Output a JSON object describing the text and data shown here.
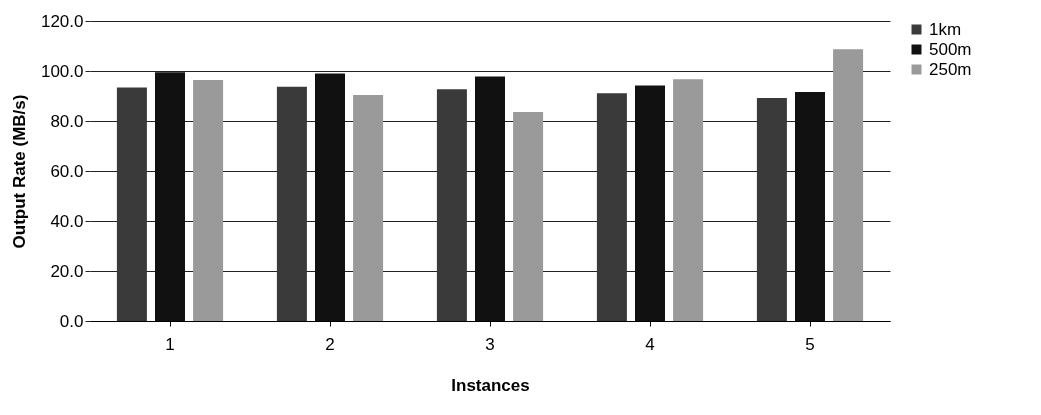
{
  "chart_data": {
    "type": "bar",
    "xlabel": "Instances",
    "ylabel": "Output Rate (MB/s)",
    "categories": [
      "1",
      "2",
      "3",
      "4",
      "5"
    ],
    "series": [
      {
        "name": "1km",
        "color": "#3a3a3a",
        "values": [
          93.4,
          93.7,
          92.7,
          91.1,
          89.2
        ]
      },
      {
        "name": "500m",
        "color": "#111111",
        "values": [
          99.5,
          99.0,
          97.8,
          94.2,
          91.6
        ]
      },
      {
        "name": "250m",
        "color": "#9a9a9a",
        "values": [
          96.4,
          90.4,
          83.6,
          96.7,
          108.7
        ]
      }
    ],
    "ylim": [
      0,
      120
    ],
    "yticks": [
      {
        "value": 0,
        "label": "0.0"
      },
      {
        "value": 20,
        "label": "20.0"
      },
      {
        "value": 40,
        "label": "40.0"
      },
      {
        "value": 60,
        "label": "60.0"
      },
      {
        "value": 80,
        "label": "80.0"
      },
      {
        "value": 100,
        "label": "100.0"
      },
      {
        "value": 120,
        "label": "120.0"
      }
    ],
    "grid": "y",
    "legend": "right"
  }
}
